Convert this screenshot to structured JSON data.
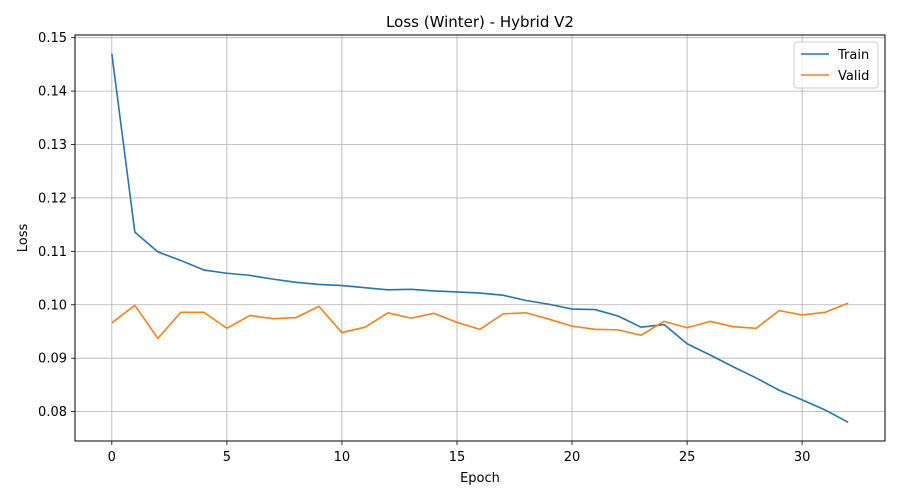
{
  "chart_data": {
    "type": "line",
    "title": "Loss (Winter) - Hybrid V2",
    "xlabel": "Epoch",
    "ylabel": "Loss",
    "xlim": [
      -1.6,
      33.6
    ],
    "ylim": [
      0.0745,
      0.1505
    ],
    "xticks": [
      0,
      5,
      10,
      15,
      20,
      25,
      30
    ],
    "yticks": [
      0.08,
      0.09,
      0.1,
      0.11,
      0.12,
      0.13,
      0.14,
      0.15
    ],
    "grid": true,
    "legend_position": "top-right",
    "x": [
      0,
      1,
      2,
      3,
      4,
      5,
      6,
      7,
      8,
      9,
      10,
      11,
      12,
      13,
      14,
      15,
      16,
      17,
      18,
      19,
      20,
      21,
      22,
      23,
      24,
      25,
      26,
      27,
      28,
      29,
      30,
      31,
      32
    ],
    "series": [
      {
        "name": "Train",
        "color": "#1f77b4",
        "values": [
          0.147,
          0.1136,
          0.1099,
          0.1083,
          0.1065,
          0.1059,
          0.1055,
          0.1048,
          0.1042,
          0.1038,
          0.1036,
          0.1032,
          0.1028,
          0.1029,
          0.1026,
          0.1024,
          0.1022,
          0.1018,
          0.1008,
          0.1001,
          0.0992,
          0.0991,
          0.0979,
          0.0958,
          0.0963,
          0.0927,
          0.0906,
          0.0884,
          0.0863,
          0.084,
          0.0822,
          0.0803,
          0.078
        ]
      },
      {
        "name": "Valid",
        "color": "#ff7f0e",
        "values": [
          0.0966,
          0.0999,
          0.0937,
          0.0986,
          0.0986,
          0.0956,
          0.098,
          0.0974,
          0.0976,
          0.0997,
          0.0948,
          0.0958,
          0.0985,
          0.0975,
          0.0984,
          0.0967,
          0.0954,
          0.0983,
          0.0985,
          0.0973,
          0.096,
          0.0954,
          0.0953,
          0.0943,
          0.0969,
          0.0957,
          0.0969,
          0.0959,
          0.0956,
          0.0989,
          0.0981,
          0.0986,
          0.1003
        ]
      }
    ]
  }
}
